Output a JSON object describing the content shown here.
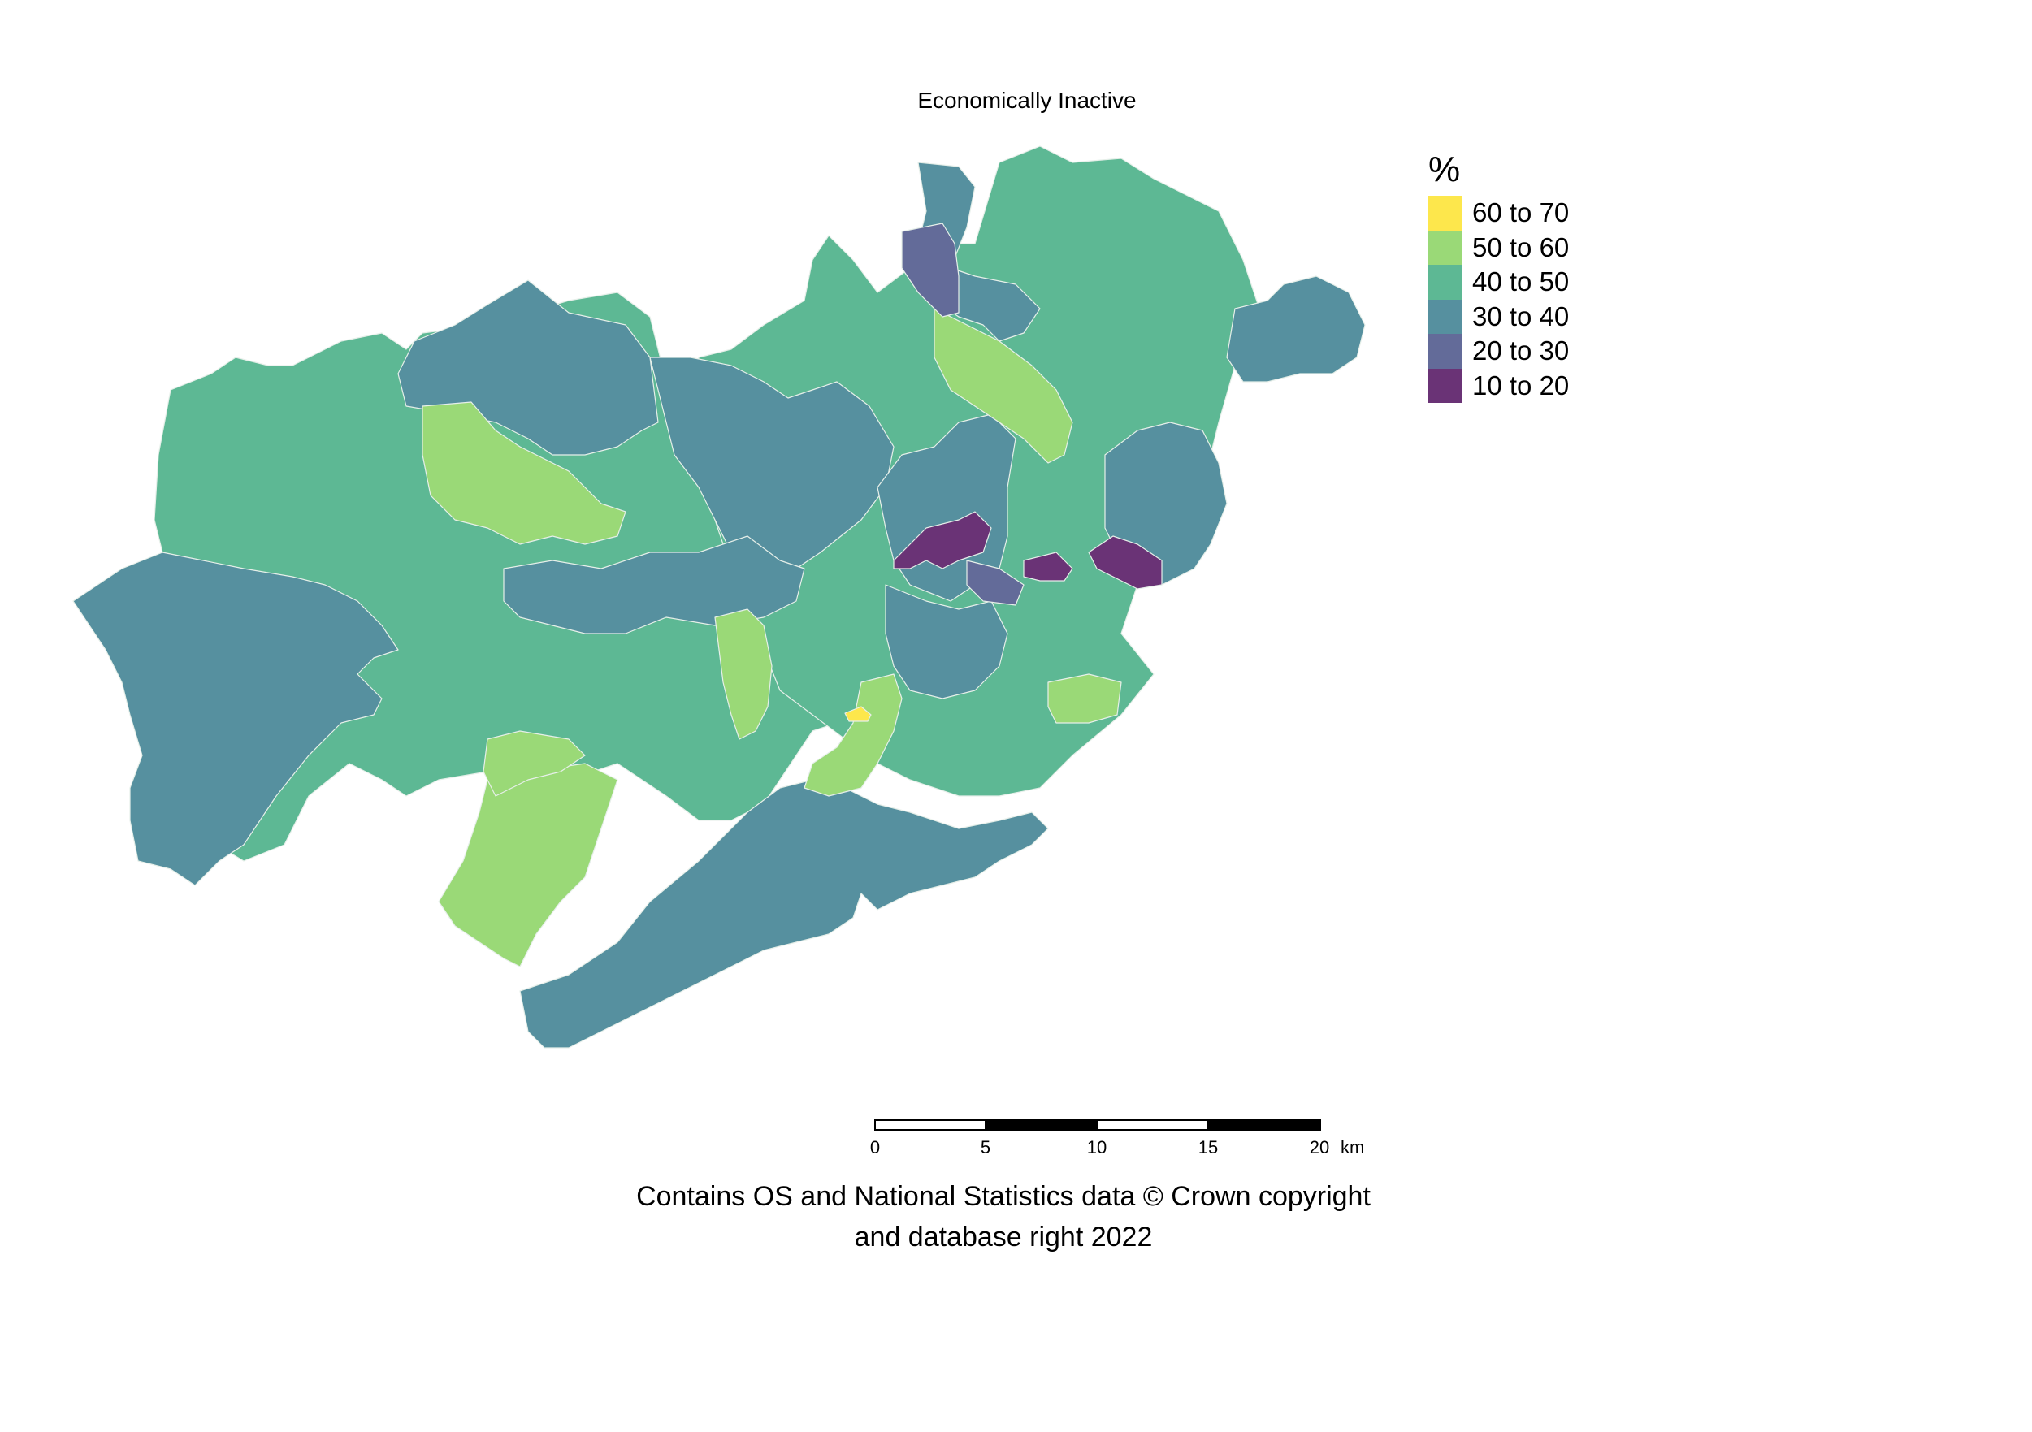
{
  "title": "Economically Inactive",
  "legend": {
    "title": "%",
    "items": [
      {
        "label": "60 to 70",
        "color": "#fde74c"
      },
      {
        "label": "50 to 60",
        "color": "#9ad977"
      },
      {
        "label": "40 to 50",
        "color": "#5db894"
      },
      {
        "label": "30 to 40",
        "color": "#56909f"
      },
      {
        "label": "20 to 30",
        "color": "#636b99"
      },
      {
        "label": "10 to 20",
        "color": "#6a3376"
      }
    ]
  },
  "scalebar": {
    "ticks": [
      "0",
      "5",
      "10",
      "15",
      "20"
    ],
    "unit": "km"
  },
  "caption": {
    "line1": "Contains OS and National Statistics data © Crown copyright",
    "line2": "and database right 2022"
  }
}
